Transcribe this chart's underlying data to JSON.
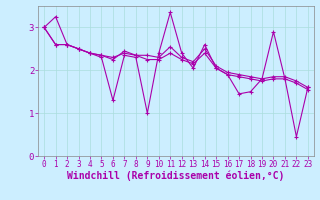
{
  "bg_color": "#cceeff",
  "line_color": "#aa00aa",
  "marker": "+",
  "xlabel": "Windchill (Refroidissement éolien,°C)",
  "xlabel_color": "#aa00aa",
  "xlim": [
    -0.5,
    23.5
  ],
  "ylim": [
    0,
    3.5
  ],
  "yticks": [
    0,
    1,
    2,
    3
  ],
  "xticks": [
    0,
    1,
    2,
    3,
    4,
    5,
    6,
    7,
    8,
    9,
    10,
    11,
    12,
    13,
    14,
    15,
    16,
    17,
    18,
    19,
    20,
    21,
    22,
    23
  ],
  "series": [
    [
      3.0,
      3.25,
      2.6,
      2.5,
      2.4,
      2.3,
      1.3,
      2.35,
      2.3,
      1.0,
      2.4,
      3.35,
      2.4,
      2.05,
      2.6,
      2.05,
      1.9,
      1.45,
      1.5,
      1.8,
      2.9,
      1.8,
      0.45,
      1.6
    ],
    [
      3.0,
      2.6,
      2.6,
      2.5,
      2.4,
      2.35,
      2.25,
      2.45,
      2.35,
      2.35,
      2.3,
      2.55,
      2.3,
      2.2,
      2.5,
      2.1,
      1.95,
      1.9,
      1.85,
      1.8,
      1.85,
      1.85,
      1.75,
      1.6
    ],
    [
      3.0,
      2.6,
      2.6,
      2.5,
      2.4,
      2.35,
      2.3,
      2.4,
      2.35,
      2.25,
      2.25,
      2.4,
      2.25,
      2.15,
      2.4,
      2.05,
      1.9,
      1.85,
      1.8,
      1.75,
      1.8,
      1.8,
      1.7,
      1.55
    ]
  ],
  "grid_color": "#aadddd",
  "tick_fontsize": 5.5,
  "xlabel_fontsize": 7,
  "linewidth": 0.8,
  "markersize": 3.5
}
